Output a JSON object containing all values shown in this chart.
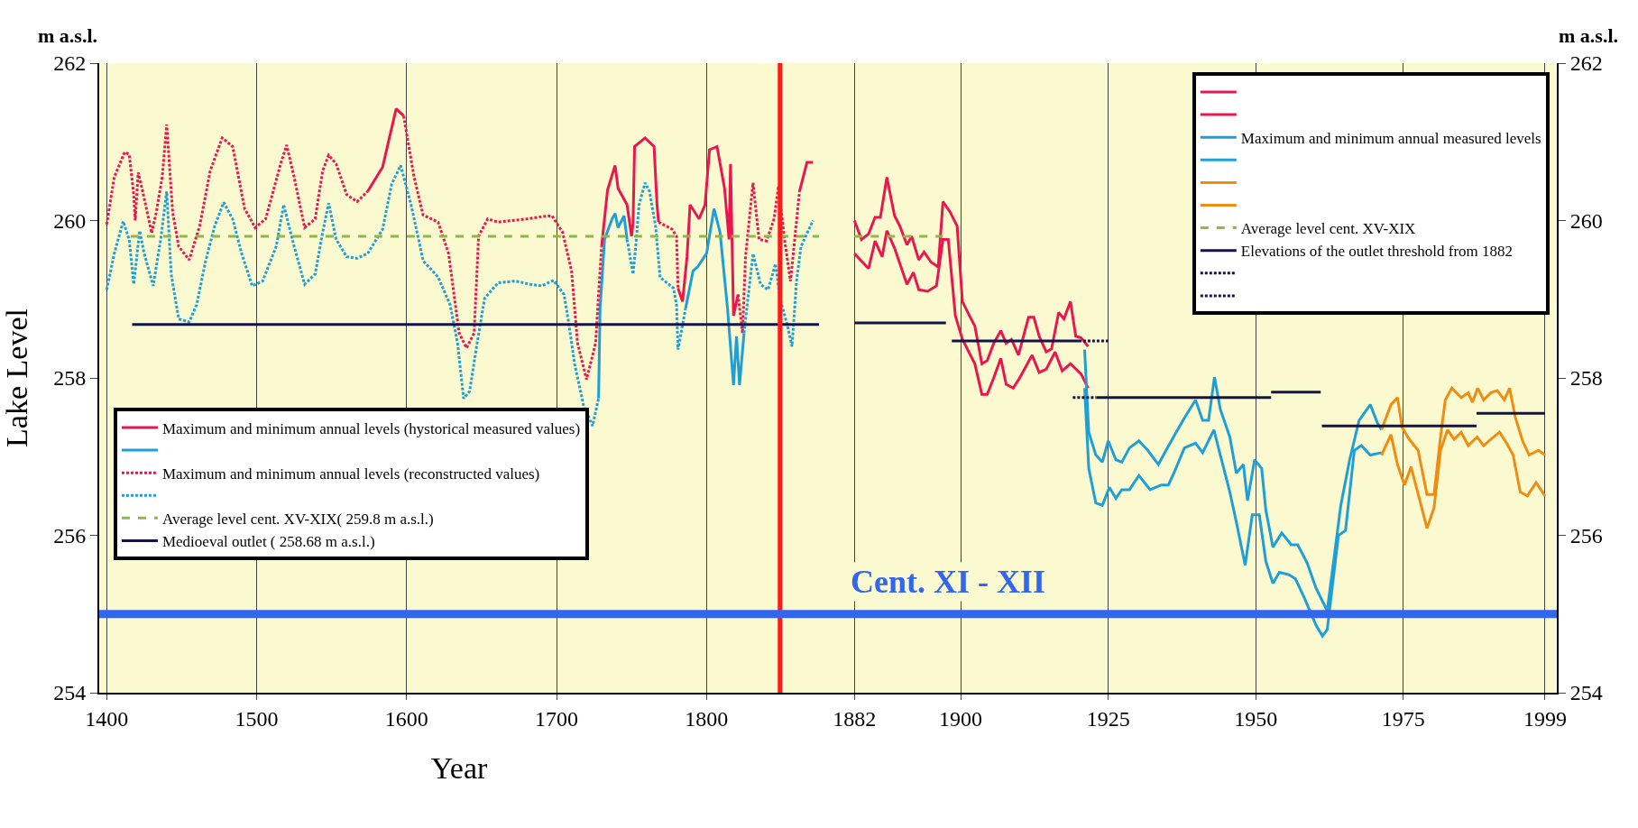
{
  "chart_data": [
    {
      "type": "line",
      "ylabel": "Lake Level",
      "xlabel": "Year",
      "annotations": [
        "m a.s.l."
      ],
      "xlim": [
        1395,
        1875
      ],
      "xticks": [
        1400,
        1500,
        1600,
        1700,
        1800
      ],
      "ylim": [
        254,
        262
      ],
      "yticks": [
        254,
        256,
        258,
        260,
        262
      ],
      "grid": "x",
      "legend": "bottom left",
      "ref_lines": [
        {
          "axis": "x",
          "value": 1849,
          "label": null,
          "color": "#ff1a1a"
        },
        {
          "axis": "y",
          "value": 255,
          "label": null,
          "color": "#3366ee"
        }
      ],
      "series": [
        {
          "name": "Maximum and minimum annual levels (hystorical measured values)",
          "color": "#e8174f",
          "line_style": "solid",
          "x": [
            1574,
            1584,
            1593,
            1598
          ],
          "values": [
            260.37,
            260.68,
            261.42,
            261.33
          ]
        },
        {
          "color": "#1e9fd8",
          "line_style": "solid",
          "x": [
            1728,
            1729,
            1732,
            1737,
            1739,
            1741,
            1745,
            1747
          ],
          "values": [
            257.74,
            258.88,
            259.76,
            260.02,
            260.09,
            259.91,
            260.06,
            259.76
          ]
        },
        {
          "name": "Maximum and minimum annual levels (reconstructed values)",
          "color": "#e8174f",
          "line_style": "dotted",
          "x": [
            1400,
            1405,
            1412,
            1415,
            1418,
            1419,
            1421,
            1424,
            1430,
            1433,
            1437,
            1440,
            1444,
            1448,
            1455,
            1462,
            1469,
            1477,
            1484,
            1492,
            1499,
            1506,
            1516,
            1520,
            1525,
            1532,
            1539,
            1544,
            1548,
            1553,
            1560,
            1567,
            1574
          ],
          "values": [
            259.95,
            260.55,
            260.87,
            260.84,
            260.33,
            260.0,
            260.61,
            260.37,
            259.84,
            260.1,
            260.55,
            261.22,
            260.1,
            259.67,
            259.5,
            259.93,
            260.63,
            261.05,
            260.94,
            260.15,
            259.91,
            260.02,
            260.72,
            260.96,
            260.55,
            259.91,
            260.02,
            260.63,
            260.83,
            260.72,
            260.33,
            260.24,
            260.37
          ]
        },
        {
          "color": "#1e9fd8",
          "line_style": "dotted",
          "x": [
            1400,
            1405,
            1411,
            1415,
            1418,
            1422,
            1425,
            1431,
            1436,
            1440,
            1443,
            1448,
            1455,
            1460,
            1466,
            1472,
            1478,
            1484,
            1490,
            1497,
            1504,
            1513,
            1518,
            1525,
            1532,
            1539,
            1544,
            1548,
            1553,
            1560,
            1567,
            1574,
            1584,
            1590,
            1596,
            1603,
            1611,
            1621,
            1629,
            1634,
            1638,
            1642,
            1647,
            1652,
            1661,
            1673,
            1682,
            1690,
            1698,
            1705,
            1708,
            1712,
            1718,
            1724,
            1728
          ],
          "values": [
            259.12,
            259.58,
            259.99,
            259.76,
            259.19,
            259.87,
            259.58,
            259.17,
            259.76,
            260.37,
            259.32,
            258.75,
            258.71,
            258.93,
            259.49,
            259.93,
            260.23,
            260.02,
            259.58,
            259.17,
            259.23,
            259.67,
            260.2,
            259.67,
            259.19,
            259.32,
            259.85,
            260.22,
            259.76,
            259.54,
            259.52,
            259.58,
            259.89,
            260.46,
            260.7,
            260.2,
            259.49,
            259.28,
            258.93,
            258.44,
            257.74,
            257.83,
            258.44,
            259.01,
            259.21,
            259.23,
            259.19,
            259.17,
            259.24,
            259.06,
            258.71,
            258.18,
            257.65,
            257.39,
            257.74
          ]
        },
        {
          "color": "#e8174f",
          "line_style": "solid",
          "x": [
            1730,
            1734,
            1739,
            1741,
            1747,
            1750,
            1751,
            1752,
            1759,
            1765,
            1767,
            1768
          ],
          "values": [
            259.67,
            260.39,
            260.7,
            260.41,
            260.2,
            259.8,
            259.97,
            260.94,
            261.05,
            260.94,
            260.2,
            259.98
          ]
        },
        {
          "color": "#e8174f",
          "line_style": "solid",
          "x": [
            1781,
            1784,
            1787,
            1789,
            1795,
            1799,
            1802,
            1807,
            1812,
            1815,
            1816,
            1818,
            1821
          ],
          "values": [
            259.14,
            258.97,
            259.54,
            260.2,
            260.02,
            260.2,
            260.9,
            260.94,
            260.41,
            259.76,
            260.72,
            258.79,
            259.06
          ]
        },
        {
          "color": "#e8174f",
          "line_style": "solid",
          "x": [
            1862,
            1867,
            1871
          ],
          "values": [
            260.37,
            260.74,
            260.74
          ]
        },
        {
          "color": "#e8174f",
          "line_style": "dotted",
          "x": [
            1598,
            1605,
            1611,
            1621,
            1628,
            1635,
            1640,
            1645,
            1648,
            1654,
            1661,
            1670,
            1680,
            1690,
            1697,
            1704,
            1710,
            1714,
            1720,
            1726,
            1730
          ],
          "values": [
            261.33,
            260.55,
            260.07,
            259.98,
            259.58,
            258.57,
            258.38,
            258.57,
            259.8,
            260.02,
            259.98,
            260.0,
            260.02,
            260.05,
            260.06,
            259.85,
            259.36,
            258.44,
            257.98,
            258.44,
            259.67
          ]
        },
        {
          "color": "#e8174f",
          "line_style": "dotted",
          "x": [
            1768,
            1777,
            1780,
            1781
          ],
          "values": [
            259.98,
            259.89,
            259.8,
            259.14
          ]
        },
        {
          "color": "#e8174f",
          "line_style": "dotted",
          "x": [
            1821,
            1824,
            1826,
            1831,
            1835,
            1840,
            1845,
            1848,
            1852,
            1856,
            1862
          ],
          "values": [
            259.06,
            258.57,
            259.54,
            260.48,
            259.76,
            259.74,
            260.02,
            260.44,
            259.76,
            259.23,
            260.37
          ]
        },
        {
          "color": "#1e9fd8",
          "line_style": "solid",
          "x": [
            1786,
            1791,
            1794,
            1800,
            1805,
            1809,
            1814,
            1818,
            1820,
            1822,
            1825
          ],
          "values": [
            258.88,
            259.36,
            259.41,
            259.58,
            260.15,
            259.85,
            258.88,
            257.91,
            258.53,
            257.91,
            258.57
          ]
        },
        {
          "color": "#1e9fd8",
          "line_style": "dotted",
          "x": [
            1747,
            1751,
            1753,
            1755,
            1759,
            1762,
            1766,
            1769,
            1778,
            1780,
            1781,
            1786
          ],
          "values": [
            259.76,
            259.32,
            259.72,
            260.2,
            260.48,
            260.37,
            259.93,
            259.28,
            259.14,
            258.93,
            258.36,
            258.88
          ]
        },
        {
          "color": "#1e9fd8",
          "line_style": "dotted",
          "x": [
            1825,
            1831,
            1836,
            1841,
            1846,
            1849,
            1854,
            1857,
            1860,
            1863,
            1871
          ],
          "values": [
            258.57,
            259.58,
            259.19,
            259.12,
            259.45,
            259.01,
            258.66,
            258.4,
            259.23,
            259.67,
            260.0
          ]
        },
        {
          "name": "Average level cent. XV-XIX( 259.8 m a.s.l.)",
          "color": "#8db84a",
          "line_style": "dashed",
          "x": [
            1416,
            1875
          ],
          "values": [
            259.8,
            259.8
          ]
        },
        {
          "name": "Medioeval outlet ( 258.68 m a.s.l.)",
          "color": "#14144a",
          "line_style": "solid",
          "x": [
            1417,
            1875
          ],
          "values": [
            258.68,
            258.68
          ]
        }
      ]
    },
    {
      "type": "line",
      "annotations": [
        "m a.s.l."
      ],
      "xlim": [
        1876,
        2001
      ],
      "xticks": [
        1882,
        1900,
        1925,
        1950,
        1975,
        1999
      ],
      "y2lim": [
        254,
        262
      ],
      "y2ticks": [
        254,
        256,
        258,
        260,
        262
      ],
      "grid": "x",
      "legend": "top right",
      "ref_lines": [
        {
          "axis": "y2",
          "value": 255,
          "label": "Cent. XI - XII",
          "color": "#3366ee"
        }
      ],
      "series": [
        {
          "color": "#e8174f",
          "axis": "y2",
          "x": [
            1882,
            1883.2,
            1884.4,
            1885.5,
            1886.4,
            1887.5,
            1888.8,
            1889.7,
            1890.9,
            1891.7,
            1892.9,
            1893.8,
            1895,
            1896.2,
            1897,
            1898.2,
            1899.4,
            1900.3,
            1901.5,
            1902.4,
            1903.6,
            1904.5,
            1905.6,
            1906.8,
            1907.7,
            1908.6,
            1909.8,
            1911.5,
            1912.4,
            1913.3,
            1914.5,
            1915.4,
            1916.6,
            1917.5,
            1918.6,
            1919.5,
            1920.4,
            1921.6
          ],
          "values": [
            260.0,
            259.76,
            259.83,
            260.04,
            260.04,
            260.55,
            260.06,
            259.93,
            259.69,
            259.8,
            259.5,
            259.6,
            259.47,
            259.41,
            260.24,
            260.11,
            259.93,
            258.97,
            258.79,
            258.66,
            258.18,
            258.22,
            258.44,
            258.6,
            258.44,
            258.49,
            258.29,
            258.77,
            258.77,
            258.53,
            258.33,
            258.37,
            258.83,
            258.75,
            258.97,
            258.53,
            258.51,
            258.4
          ]
        },
        {
          "color": "#e8174f",
          "axis": "y2",
          "x": [
            1882,
            1884.4,
            1885.5,
            1886.7,
            1887.5,
            1888.8,
            1890.9,
            1892,
            1892.9,
            1894.4,
            1895.9,
            1897,
            1897.9,
            1899.1,
            1900.3,
            1902.4,
            1903.6,
            1904.5,
            1905.6,
            1906.8,
            1907.7,
            1908.9,
            1910,
            1912.1,
            1913.3,
            1914.5,
            1916,
            1917.2,
            1918.6,
            1920.4,
            1921.6
          ],
          "values": [
            259.58,
            259.39,
            259.74,
            259.54,
            259.87,
            259.65,
            259.19,
            259.34,
            259.12,
            259.1,
            259.17,
            259.76,
            259.76,
            258.79,
            258.49,
            258.18,
            257.79,
            257.79,
            258.0,
            258.25,
            257.92,
            257.87,
            258.0,
            258.29,
            258.07,
            258.11,
            258.33,
            258.09,
            258.18,
            258.05,
            257.87
          ]
        },
        {
          "name": "Maximum and minimum annual measured levels",
          "color": "#1e9fd8",
          "axis": "y2",
          "x": [
            1921,
            1921.7,
            1922.9,
            1924,
            1925,
            1926.3,
            1927.3,
            1928.6,
            1930.2,
            1931.7,
            1933.5,
            1934.8,
            1936.3,
            1937.9,
            1939.8,
            1941,
            1942,
            1943,
            1944,
            1945.6,
            1946.7,
            1947.9,
            1948.6,
            1949.8,
            1951,
            1951.7,
            1952.9,
            1954.4,
            1956,
            1957.1,
            1958.7,
            1960.2,
            1962.1,
            1963.2,
            1964.4,
            1965.9,
            1967.5,
            1969.4,
            1970.6,
            1971.3
          ],
          "values": [
            258.36,
            257.31,
            257.02,
            256.93,
            257.2,
            256.96,
            256.93,
            257.11,
            257.2,
            257.08,
            256.9,
            257.08,
            257.28,
            257.49,
            257.72,
            257.46,
            257.46,
            258.01,
            257.6,
            257.25,
            256.79,
            256.9,
            256.44,
            256.96,
            256.85,
            256.32,
            255.85,
            256.03,
            255.88,
            255.88,
            255.65,
            255.33,
            255.04,
            255.68,
            256.38,
            256.96,
            257.46,
            257.66,
            257.43,
            257.34
          ]
        },
        {
          "color": "#1e9fd8",
          "axis": "y2",
          "x": [
            1921,
            1921.7,
            1922.9,
            1924,
            1925.2,
            1926.3,
            1927.3,
            1928.6,
            1930.2,
            1932.1,
            1934,
            1935.2,
            1936.3,
            1937.9,
            1939.8,
            1941,
            1942.9,
            1944.4,
            1945.6,
            1946.7,
            1948.2,
            1949.4,
            1950.6,
            1951.7,
            1952.9,
            1954,
            1955.6,
            1956.7,
            1958.2,
            1960.2,
            1961.3,
            1962.1,
            1964,
            1965.2,
            1966.7,
            1967.9,
            1969.4,
            1971.3
          ],
          "values": [
            257.87,
            256.85,
            256.41,
            256.38,
            256.61,
            256.47,
            256.58,
            256.58,
            256.76,
            256.58,
            256.64,
            256.64,
            256.82,
            257.11,
            257.17,
            257.05,
            257.34,
            256.9,
            256.55,
            256.17,
            255.62,
            256.26,
            256.26,
            255.67,
            255.39,
            255.53,
            255.5,
            255.45,
            255.21,
            254.86,
            254.72,
            254.8,
            256.0,
            256.06,
            257.08,
            257.14,
            257.02,
            257.05
          ]
        },
        {
          "color": "#ef8c12",
          "axis": "y2",
          "x": [
            1971.3,
            1972.9,
            1974,
            1974.8,
            1976,
            1977.5,
            1979,
            1980.2,
            1981.3,
            1982.1,
            1983.2,
            1984.8,
            1986,
            1986.7,
            1987.6,
            1988.6,
            1989.8,
            1990.9,
            1992.1,
            1993,
            1994,
            1995.2,
            1996.3,
            1997.9,
            1999
          ],
          "values": [
            257.34,
            257.66,
            257.75,
            257.37,
            257.22,
            257.08,
            256.52,
            256.52,
            257.25,
            257.72,
            257.87,
            257.75,
            257.81,
            257.69,
            257.87,
            257.72,
            257.81,
            257.84,
            257.72,
            257.87,
            257.49,
            257.2,
            257.02,
            257.08,
            257.02
          ]
        },
        {
          "color": "#ef8c12",
          "axis": "y2",
          "x": [
            1971.3,
            1972.9,
            1974,
            1975.2,
            1976.3,
            1977.9,
            1979,
            1980.2,
            1981.3,
            1982.5,
            1983.6,
            1984.8,
            1986,
            1987.5,
            1988.6,
            1989.8,
            1991.3,
            1992.5,
            1993.6,
            1994.8,
            1996,
            1997.5,
            1999
          ],
          "values": [
            257.02,
            257.28,
            256.9,
            256.64,
            256.87,
            256.41,
            256.09,
            256.35,
            257.08,
            257.34,
            257.22,
            257.31,
            257.14,
            257.25,
            257.14,
            257.22,
            257.31,
            257.17,
            257.02,
            256.55,
            256.5,
            256.67,
            256.5
          ]
        },
        {
          "name": "Average level cent. XV-XIX",
          "color": "#8db84a",
          "axis": "y2",
          "line_style": "dashed",
          "x": [
            1882,
            1897
          ],
          "values": [
            259.8,
            259.8
          ]
        },
        {
          "name": "Elevations of the outlet threshold from 1882",
          "color": "#14144a",
          "axis": "y2",
          "line_style": "solid",
          "x": [
            1882,
            1897.5
          ],
          "values": [
            258.7,
            258.7
          ]
        },
        {
          "color": "#14144a",
          "axis": "y2",
          "line_style": "dotted",
          "x": [
            1920,
            1925
          ],
          "values": [
            258.47,
            258.47
          ]
        },
        {
          "color": "#14144a",
          "axis": "y2",
          "line_style": "solid",
          "x": [
            1898.5,
            1920
          ],
          "values": [
            258.47,
            258.47
          ]
        },
        {
          "color": "#14144a",
          "axis": "y2",
          "line_style": "dotted",
          "x": [
            1919,
            1923
          ],
          "values": [
            257.75,
            257.75
          ]
        },
        {
          "color": "#14144a",
          "axis": "y2",
          "line_style": "solid",
          "x": [
            1923,
            1952.6
          ],
          "values": [
            257.75,
            257.75
          ]
        },
        {
          "color": "#14144a",
          "axis": "y2",
          "line_style": "solid",
          "x": [
            1952.6,
            1961
          ],
          "values": [
            257.82,
            257.82
          ]
        },
        {
          "color": "#14144a",
          "axis": "y2",
          "line_style": "solid",
          "x": [
            1961.2,
            1987.4
          ],
          "values": [
            257.39,
            257.39
          ]
        },
        {
          "color": "#14144a",
          "axis": "y2",
          "line_style": "solid",
          "x": [
            1987.4,
            1999
          ],
          "values": [
            257.55,
            257.55
          ]
        }
      ]
    }
  ]
}
